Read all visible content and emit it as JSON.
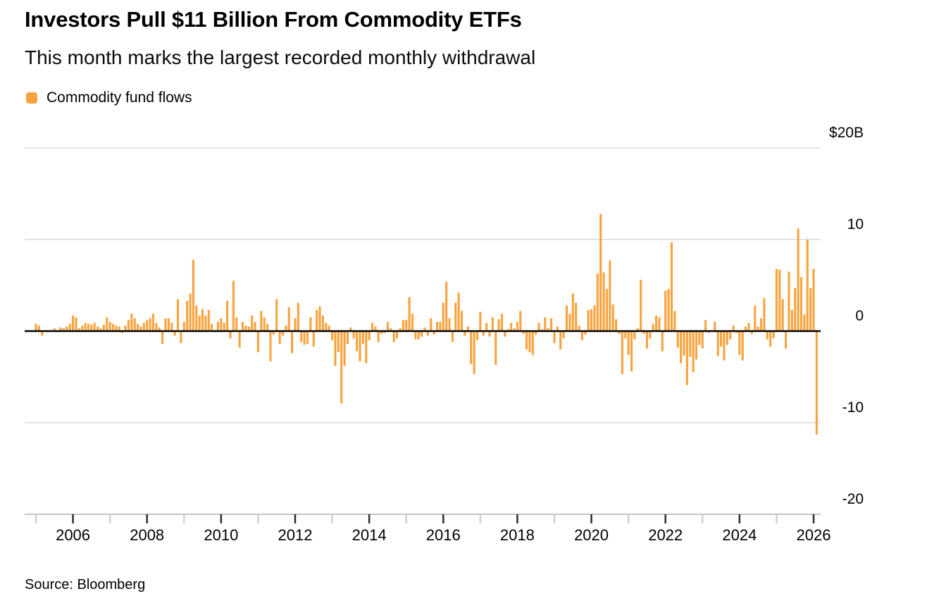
{
  "header": {
    "title": "Investors Pull $11 Billion From Commodity ETFs",
    "subtitle": "This month marks the largest recorded monthly withdrawal"
  },
  "legend": {
    "label": "Commodity fund flows"
  },
  "source": {
    "label": "Source: Bloomberg"
  },
  "chart_data": {
    "type": "bar",
    "title": "Investors Pull $11 Billion From Commodity ETFs",
    "subtitle": "This month marks the largest recorded monthly withdrawal",
    "series_name": "Commodity fund flows",
    "unit": "billions of US dollars, monthly",
    "bar_color": "#F8A33D",
    "grid_color": "#d8d8d8",
    "zero_line_color": "#000000",
    "axis_line_color": "#c4c4c4",
    "dark_tick_color": "#2b2b2b",
    "light_tick_color": "#cfcfcf",
    "ylim": [
      -20,
      20
    ],
    "grid": true,
    "legend_position": "top-left",
    "y_ticks": [
      {
        "label": "$20B",
        "value": 20
      },
      {
        "label": "10",
        "value": 10
      },
      {
        "label": "0",
        "value": 0
      },
      {
        "label": "-10",
        "value": -10
      },
      {
        "label": "-20",
        "value": -20
      }
    ],
    "x_axis": {
      "start_month": "2005-01",
      "end_month": "2026-02",
      "tick_years": [
        2005,
        2006,
        2007,
        2008,
        2009,
        2010,
        2011,
        2012,
        2013,
        2014,
        2015,
        2016,
        2017,
        2018,
        2019,
        2020,
        2021,
        2022,
        2023,
        2024,
        2025,
        2026
      ],
      "labeled_years": [
        2006,
        2008,
        2010,
        2012,
        2014,
        2016,
        2018,
        2020,
        2022,
        2024,
        2026
      ]
    },
    "values_by_year": {
      "2005": [
        0.8,
        0.6,
        -0.5,
        -0.1,
        0.1,
        0.1,
        0.3,
        0.1,
        0.4,
        0.3,
        0.5,
        0.8
      ],
      "2006": [
        1.7,
        1.5,
        0.3,
        0.6,
        0.9,
        0.8,
        0.7,
        0.9,
        0.5,
        0.3,
        0.7,
        1.5
      ],
      "2007": [
        1.0,
        0.8,
        0.6,
        0.5,
        -0.2,
        0.6,
        1.2,
        1.9,
        1.4,
        0.8,
        0.5,
        0.9
      ],
      "2008": [
        1.2,
        1.4,
        1.9,
        0.9,
        0.4,
        -1.4,
        1.4,
        1.4,
        0.9,
        -0.5,
        3.5,
        -1.3
      ],
      "2009": [
        1.0,
        3.3,
        4.1,
        7.8,
        2.8,
        1.7,
        2.4,
        1.7,
        2.3,
        0.8,
        -0.1,
        1.0
      ],
      "2010": [
        1.4,
        0.9,
        3.3,
        -0.8,
        5.5,
        1.5,
        -1.8,
        1.0,
        0.6,
        0.5,
        1.7,
        1.0
      ],
      "2011": [
        -2.3,
        2.2,
        1.5,
        0.8,
        -3.3,
        -0.4,
        3.5,
        -1.4,
        -0.5,
        0.6,
        2.6,
        -2.4
      ],
      "2012": [
        1.4,
        3.1,
        -1.2,
        -1.5,
        -1.4,
        1.5,
        -1.7,
        2.3,
        2.7,
        1.7,
        0.9,
        0.6
      ],
      "2013": [
        -1.0,
        -3.8,
        -2.3,
        -7.9,
        -3.8,
        -1.4,
        0.4,
        -0.8,
        -2.2,
        -3.3,
        -1.4,
        -3.5
      ],
      "2014": [
        -1.0,
        0.9,
        0.5,
        -1.2,
        -0.3,
        -0.2,
        1.0,
        0.3,
        -1.2,
        -0.8,
        0.3,
        1.2
      ],
      "2015": [
        1.2,
        3.7,
        1.9,
        -0.9,
        -0.9,
        -0.6,
        0.4,
        -0.5,
        1.4,
        -0.4,
        1.0,
        1.0
      ],
      "2016": [
        3.1,
        5.4,
        1.4,
        -1.2,
        3.1,
        4.2,
        2.2,
        -0.5,
        0.5,
        -3.6,
        -4.7,
        -1.0
      ],
      "2017": [
        2.1,
        -0.5,
        0.9,
        -0.6,
        1.5,
        -3.7,
        1.3,
        1.9,
        -0.6,
        0.2,
        0.9,
        0.3
      ],
      "2018": [
        1.0,
        2.2,
        -0.3,
        -2.0,
        -2.3,
        -2.6,
        -0.4,
        0.9,
        0.2,
        1.5,
        0.3,
        1.4
      ],
      "2019": [
        -1.3,
        0.5,
        -2.0,
        -0.8,
        2.8,
        1.9,
        4.1,
        3.1,
        0.6,
        -1.0,
        -0.4,
        2.3
      ],
      "2020": [
        2.4,
        2.8,
        6.3,
        12.8,
        6.4,
        4.6,
        7.7,
        2.9,
        1.3,
        -0.3,
        -4.7,
        -0.8
      ],
      "2021": [
        -2.6,
        -4.4,
        -0.9,
        0.3,
        5.6,
        -0.3,
        -1.9,
        -0.8,
        0.8,
        1.7,
        1.5,
        -2.2
      ],
      "2022": [
        4.4,
        4.6,
        9.7,
        2.2,
        -1.8,
        -3.5,
        -2.7,
        -5.9,
        -2.8,
        -4.5,
        -3.1,
        -1.5
      ],
      "2023": [
        -1.9,
        1.2,
        -0.2,
        -0.1,
        1.0,
        -2.7,
        -1.7,
        -3.2,
        -1.5,
        -0.9,
        0.6,
        -0.2
      ],
      "2024": [
        -2.6,
        -3.2,
        0.5,
        0.9,
        -0.3,
        2.8,
        0.5,
        1.4,
        3.6,
        -0.9,
        -1.7,
        -0.8
      ],
      "2025": [
        6.8,
        6.7,
        3.5,
        -1.9,
        6.5,
        2.3,
        4.7,
        11.2,
        5.9,
        1.8,
        10.0,
        4.7
      ],
      "2026": [
        6.8,
        -11.3
      ]
    }
  }
}
